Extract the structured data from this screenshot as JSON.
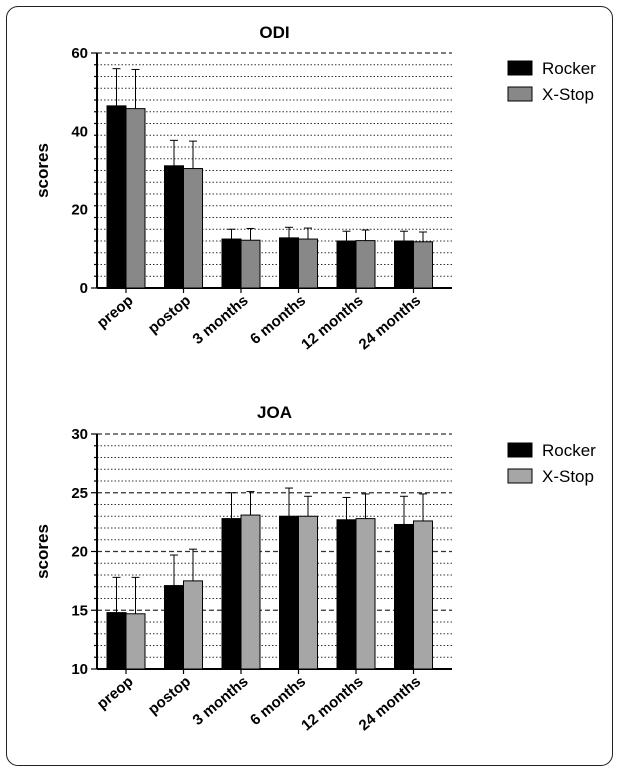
{
  "chart_data": [
    {
      "type": "bar",
      "title": "ODI",
      "ylabel": "scores",
      "xlabel": "",
      "ylim": [
        0,
        60
      ],
      "yticks": [
        0,
        20,
        40,
        60
      ],
      "grid": "dotted horizontal, dashed at labeled ticks",
      "legend_position": "right",
      "categories": [
        "preop",
        "postop",
        "3 months",
        "6 months",
        "12 months",
        "24 months"
      ],
      "series": [
        {
          "name": "Rocker",
          "color": "#000000",
          "values": [
            46.5,
            31.2,
            12.5,
            12.8,
            12.0,
            12.0
          ],
          "errors": [
            9.5,
            6.5,
            2.5,
            2.7,
            2.5,
            2.5
          ]
        },
        {
          "name": "X-Stop",
          "color": "#888888",
          "values": [
            45.8,
            30.5,
            12.2,
            12.5,
            12.1,
            11.8
          ],
          "errors": [
            10.0,
            7.0,
            3.0,
            2.8,
            2.7,
            2.5
          ]
        }
      ]
    },
    {
      "type": "bar",
      "title": "JOA",
      "ylabel": "scores",
      "xlabel": "",
      "ylim": [
        10,
        30
      ],
      "yticks": [
        10,
        15,
        20,
        25,
        30
      ],
      "grid": "dotted horizontal, dashed at labeled ticks",
      "legend_position": "right",
      "categories": [
        "preop",
        "postop",
        "3 months",
        "6 months",
        "12 months",
        "24 months"
      ],
      "series": [
        {
          "name": "Rocker",
          "color": "#000000",
          "values": [
            14.8,
            17.1,
            22.8,
            23.0,
            22.7,
            22.3
          ],
          "errors": [
            3.0,
            2.6,
            2.2,
            2.4,
            1.9,
            2.4
          ]
        },
        {
          "name": "X-Stop",
          "color": "#a6a6a6",
          "values": [
            14.7,
            17.5,
            23.1,
            23.0,
            22.8,
            22.6
          ],
          "errors": [
            3.1,
            2.7,
            2.0,
            1.7,
            2.1,
            2.3
          ]
        }
      ]
    }
  ]
}
